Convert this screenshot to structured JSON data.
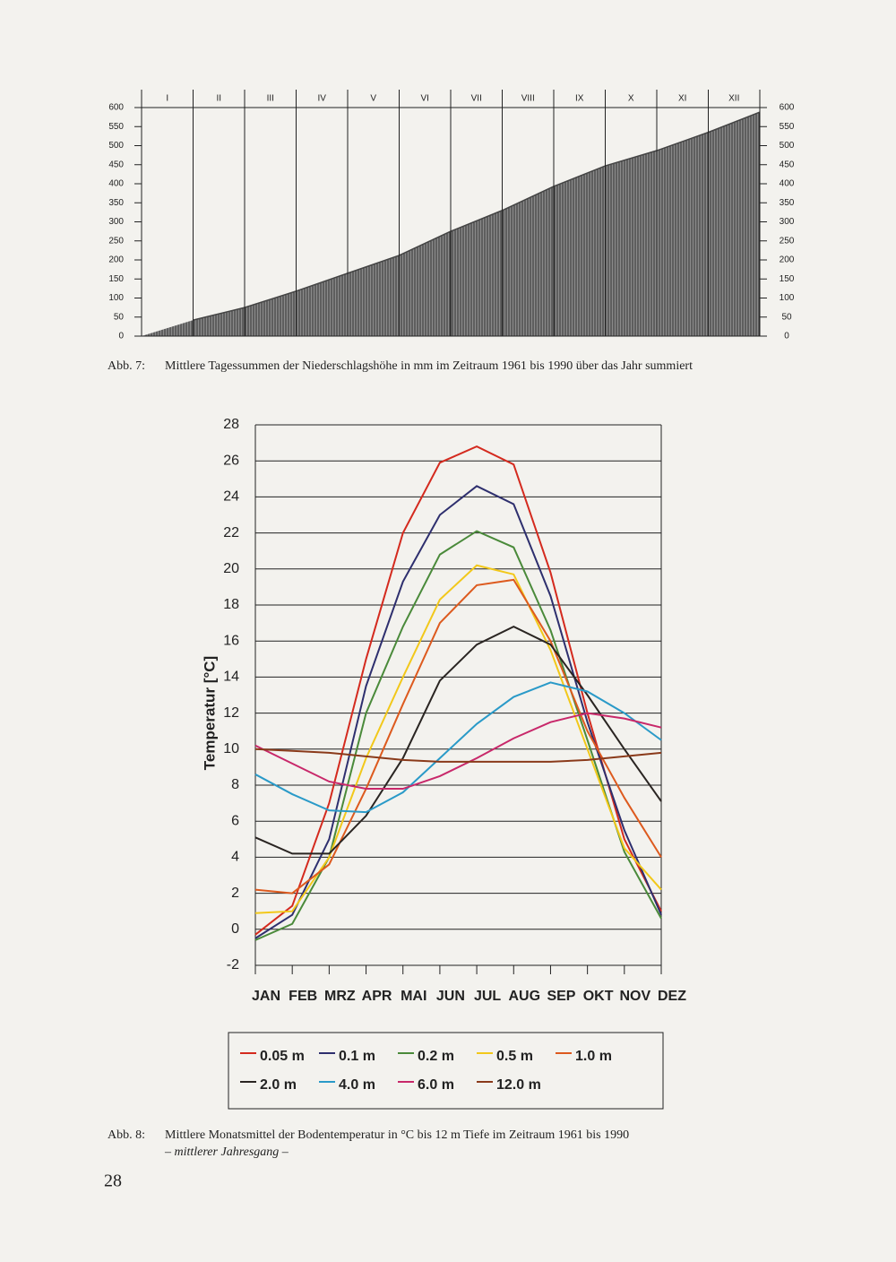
{
  "chart_data": [
    {
      "type": "area",
      "categories": [
        "I",
        "II",
        "III",
        "IV",
        "V",
        "VI",
        "VII",
        "VIII",
        "IX",
        "X",
        "XI",
        "XII"
      ],
      "values": [
        42,
        75,
        118,
        165,
        212,
        275,
        330,
        393,
        447,
        487,
        535,
        588
      ],
      "ylim": [
        0,
        600
      ],
      "yticks": [
        0,
        50,
        100,
        150,
        200,
        250,
        300,
        350,
        400,
        450,
        500,
        550,
        600
      ],
      "color": "#444444"
    },
    {
      "type": "line",
      "ylabel": "Temperatur [°C]",
      "categories": [
        "JAN",
        "FEB",
        "MRZ",
        "APR",
        "MAI",
        "JUN",
        "JUL",
        "AUG",
        "SEP",
        "OKT",
        "NOV",
        "DEZ"
      ],
      "ylim": [
        -2,
        28
      ],
      "yticks": [
        -2,
        0,
        2,
        4,
        6,
        8,
        10,
        12,
        14,
        16,
        18,
        20,
        22,
        24,
        26,
        28
      ],
      "grid": true,
      "series": [
        {
          "name": "0.05 m",
          "color": "#d42a1e",
          "values": [
            -0.3,
            1.3,
            7,
            15,
            22,
            25.9,
            26.8,
            25.8,
            19.8,
            12,
            5,
            1
          ]
        },
        {
          "name": "0.1 m",
          "color": "#2e2f6e",
          "values": [
            -0.5,
            0.8,
            5,
            13.5,
            19.3,
            23,
            24.6,
            23.6,
            18.5,
            11.5,
            5.5,
            0.8
          ]
        },
        {
          "name": "0.2 m",
          "color": "#4a8a3a",
          "values": [
            -0.6,
            0.3,
            4,
            12,
            16.8,
            20.8,
            22.1,
            21.2,
            16.6,
            10.5,
            4.3,
            0.6
          ]
        },
        {
          "name": "0.5 m",
          "color": "#f2c81a",
          "values": [
            0.9,
            1,
            4,
            9.5,
            14,
            18.3,
            20.2,
            19.7,
            15.5,
            10,
            4.5,
            2.2
          ]
        },
        {
          "name": "1.0 m",
          "color": "#dd5a1e",
          "values": [
            2.2,
            2,
            3.6,
            7.8,
            12.5,
            17,
            19.1,
            19.4,
            16,
            11,
            7.3,
            4
          ]
        },
        {
          "name": "2.0 m",
          "color": "#2a2522",
          "values": [
            5.1,
            4.2,
            4.2,
            6.3,
            9.5,
            13.8,
            15.8,
            16.8,
            15.8,
            13,
            10,
            7.1
          ]
        },
        {
          "name": "4.0 m",
          "color": "#2a9ac8",
          "values": [
            8.6,
            7.5,
            6.6,
            6.5,
            7.6,
            9.5,
            11.4,
            12.9,
            13.7,
            13.2,
            12,
            10.5
          ]
        },
        {
          "name": "6.0 m",
          "color": "#c8286a",
          "values": [
            10.2,
            9.2,
            8.2,
            7.8,
            7.8,
            8.5,
            9.5,
            10.6,
            11.5,
            12,
            11.7,
            11.2
          ]
        },
        {
          "name": "12.0 m",
          "color": "#8a3a1a",
          "values": [
            10,
            9.9,
            9.8,
            9.6,
            9.4,
            9.3,
            9.3,
            9.3,
            9.3,
            9.4,
            9.6,
            9.8
          ]
        }
      ]
    }
  ],
  "captions": [
    {
      "label": "Abb. 7:",
      "text": "Mittlere Tagessummen der Niederschlagshöhe in mm im Zeitraum 1961 bis 1990 über das Jahr summiert"
    },
    {
      "label": "Abb. 8:",
      "text": "Mittlere Monatsmittel der Bodentemperatur in °C bis 12 m Tiefe im Zeitraum 1961 bis 1990",
      "subtext": "– mittlerer Jahresgang –"
    }
  ],
  "page_number": "28"
}
